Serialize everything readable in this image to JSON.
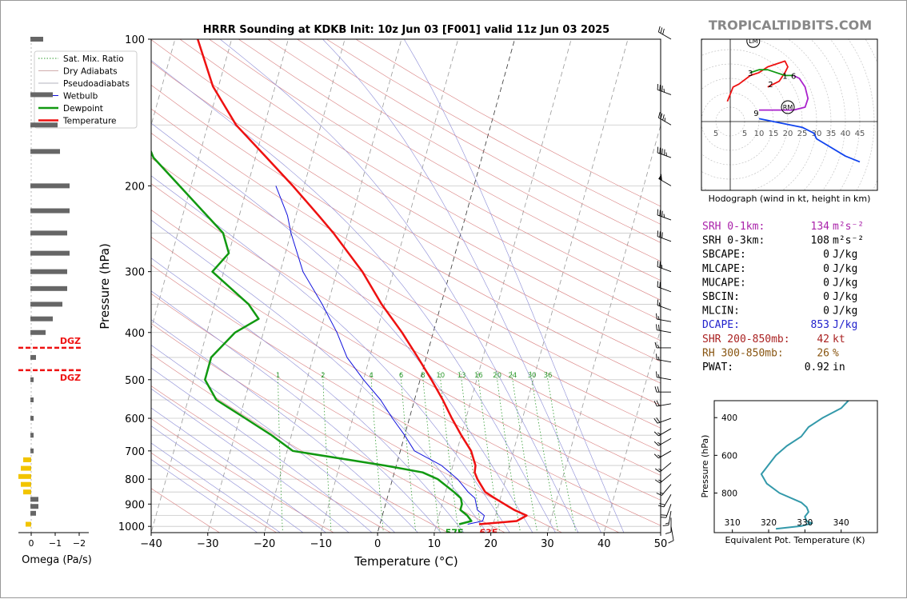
{
  "site": "TROPICALTIDBITS.COM",
  "chart_data": [
    {
      "type": "line",
      "title": "HRRR Sounding at KDKB Init: 10z Jun 03 [F001] valid 11z Jun 03 2025",
      "xlabel": "Temperature (°C)",
      "ylabel": "Pressure (hPa)",
      "xlim": [
        -40,
        50
      ],
      "ylim": [
        1030,
        100
      ],
      "y_scale": "log",
      "skew": "skew-T",
      "x_ticks": [
        "−40",
        "−30",
        "−20",
        "−10",
        "0",
        "10",
        "20",
        "30",
        "40",
        "50"
      ],
      "y_ticks": [
        "100",
        "200",
        "300",
        "400",
        "500",
        "600",
        "700",
        "800",
        "900",
        "1000"
      ],
      "legend_position": "top-left",
      "legend": [
        "Sat. Mix. Ratio",
        "Dry Adiabats",
        "Pseudoadiabats",
        "Wetbulb",
        "Dewpoint",
        "Temperature"
      ],
      "mixing_ratio_labels": [
        "1",
        "2",
        "4",
        "6",
        "8",
        "10",
        "13",
        "16",
        "20",
        "24",
        "30",
        "36"
      ],
      "surface_labels": {
        "dewpoint": "57F",
        "temperature": "63F"
      },
      "series": [
        {
          "name": "Temperature",
          "color": "#ee1111",
          "p": [
            990,
            975,
            950,
            925,
            900,
            875,
            850,
            800,
            775,
            750,
            700,
            650,
            600,
            550,
            500,
            450,
            400,
            350,
            300,
            250,
            230,
            200,
            175,
            150,
            125,
            100
          ],
          "t": [
            17.5,
            24.0,
            25.5,
            23.0,
            21.0,
            19.0,
            17.0,
            15.0,
            14.2,
            14.0,
            12.5,
            10.0,
            7.5,
            5.0,
            2.0,
            -1.5,
            -5.5,
            -10.5,
            -15.5,
            -22.5,
            -26.0,
            -32.0,
            -38.0,
            -45.0,
            -51.0,
            -56.0
          ]
        },
        {
          "name": "Dewpoint",
          "color": "#119911",
          "p": [
            990,
            975,
            950,
            925,
            900,
            875,
            850,
            800,
            775,
            750,
            700,
            650,
            600,
            550,
            500,
            450,
            400,
            375,
            350,
            300,
            275,
            250,
            200,
            175,
            150,
            100
          ],
          "t": [
            14.0,
            16.0,
            15.0,
            13.5,
            13.5,
            13.0,
            11.5,
            8.0,
            5.0,
            -2.0,
            -19.0,
            -23.5,
            -29.0,
            -35.0,
            -38.0,
            -38.0,
            -35.0,
            -31.5,
            -34.0,
            -42.0,
            -40.0,
            -42.0,
            -52.0,
            -58.0,
            -62.0,
            -73.0
          ]
        },
        {
          "name": "Wetbulb",
          "color": "#1111dd",
          "p": [
            990,
            975,
            950,
            925,
            900,
            875,
            850,
            800,
            750,
            700,
            650,
            600,
            550,
            500,
            450,
            400,
            350,
            300,
            250,
            230,
            200
          ],
          "t": [
            15.5,
            18.0,
            18.0,
            16.5,
            16.0,
            15.5,
            14.0,
            11.5,
            8.0,
            2.5,
            0.0,
            -3.0,
            -6.0,
            -10.0,
            -14.0,
            -17.0,
            -21.0,
            -26.0,
            -30.0,
            -31.5,
            -35.0
          ]
        }
      ]
    },
    {
      "type": "line",
      "title": "",
      "xlabel": "Hodograph (wind in kt, height in km)",
      "ring_labels": [
        "5",
        "5",
        "10",
        "15",
        "20",
        "25",
        "30",
        "35",
        "40",
        "45"
      ],
      "markers": [
        "LM",
        "RM"
      ],
      "height_labels": [
        {
          "text": "3",
          "u": 7,
          "v": 17
        },
        {
          "text": "1",
          "u": 19,
          "v": 16
        },
        {
          "text": "6",
          "u": 22,
          "v": 16
        },
        {
          "text": "2",
          "u": 14,
          "v": 13
        },
        {
          "text": "9",
          "u": 9,
          "v": 3
        }
      ],
      "segments": [
        {
          "name": "0-3km",
          "color": "#ee1111",
          "u": [
            -1,
            1,
            3,
            7,
            10,
            13,
            16,
            19,
            20,
            19,
            17,
            15,
            13
          ],
          "v": [
            7,
            12,
            13,
            16,
            17,
            19,
            20,
            21,
            19,
            17,
            14,
            13,
            12
          ]
        },
        {
          "name": "3-6km",
          "color": "#119911",
          "u": [
            7,
            10,
            13,
            16,
            19,
            22
          ],
          "v": [
            17,
            18,
            18,
            17,
            16,
            16
          ]
        },
        {
          "name": "6-9km",
          "color": "#aa22cc",
          "u": [
            22,
            24,
            26,
            27,
            26,
            22,
            17,
            12,
            10
          ],
          "v": [
            16,
            15,
            12,
            8,
            5,
            4,
            4,
            4,
            4
          ]
        },
        {
          "name": "9-12km",
          "color": "#1144ee",
          "u": [
            10,
            15,
            20,
            25,
            29,
            30,
            35,
            40,
            45
          ],
          "v": [
            1,
            0,
            -1,
            -2,
            -4,
            -6,
            -9,
            -12,
            -14
          ]
        }
      ],
      "lm": {
        "u": 8,
        "v": 28
      },
      "rm": {
        "u": 20,
        "v": 5
      }
    },
    {
      "type": "line",
      "title": "",
      "xlabel": "Equivalent Pot. Temperature (K)",
      "ylabel": "Pressure (hPa)",
      "xlim": [
        305,
        350
      ],
      "ylim": [
        1010,
        310
      ],
      "x_ticks": [
        "310",
        "320",
        "330",
        "340"
      ],
      "y_ticks": [
        "400",
        "600",
        "800"
      ],
      "series": [
        {
          "name": "θe",
          "color": "#3399aa",
          "p": [
            990,
            975,
            960,
            950,
            925,
            900,
            875,
            850,
            800,
            750,
            700,
            675,
            650,
            600,
            550,
            500,
            450,
            400,
            350,
            310
          ],
          "x": [
            322,
            329,
            332,
            330.5,
            330,
            331,
            330.5,
            329,
            323,
            319.5,
            318,
            319,
            320,
            322,
            325,
            329,
            331,
            335,
            340,
            342
          ]
        }
      ]
    },
    {
      "type": "bar",
      "title": "",
      "xlabel": "Omega (Pa/s)",
      "xlim": [
        1.2,
        -2.7
      ],
      "x_ticks": [
        "0",
        "−1",
        "−2"
      ],
      "annotation": "DGZ",
      "dgz_p": [
        430,
        478
      ],
      "bars": {
        "p": [
          100,
          130,
          150,
          170,
          200,
          225,
          250,
          275,
          300,
          325,
          350,
          375,
          400,
          450,
          500,
          550,
          600,
          650,
          700,
          730,
          760,
          790,
          820,
          850,
          880,
          910,
          940,
          990
        ],
        "omega": [
          -0.5,
          -0.9,
          -1.1,
          -1.2,
          -1.6,
          -1.6,
          -1.5,
          -1.6,
          -1.5,
          -1.5,
          -1.3,
          -0.9,
          -0.6,
          -0.2,
          -0.1,
          -0.1,
          -0.1,
          -0.1,
          -0.1,
          0.3,
          0.4,
          0.5,
          0.4,
          0.3,
          -0.3,
          -0.3,
          -0.2,
          0.2
        ],
        "colors": [
          "#666666",
          "#666666",
          "#666666",
          "#666666",
          "#666666",
          "#666666",
          "#666666",
          "#666666",
          "#666666",
          "#666666",
          "#666666",
          "#666666",
          "#666666",
          "#666666",
          "#666666",
          "#666666",
          "#666666",
          "#666666",
          "#666666",
          "#f2c400",
          "#f2c400",
          "#f2c400",
          "#f2c400",
          "#f2c400",
          "#666666",
          "#666666",
          "#666666",
          "#f2c400"
        ]
      }
    }
  ],
  "indices": [
    {
      "label": "SRH 0-1km:",
      "value": "134",
      "unit": "m²s⁻²",
      "color": "#aa22aa"
    },
    {
      "label": "SRH 0-3km:",
      "value": "108",
      "unit": "m²s⁻²",
      "color": "#000000"
    },
    {
      "label": "SBCAPE:",
      "value": "0",
      "unit": "J/kg",
      "color": "#000000"
    },
    {
      "label": "MLCAPE:",
      "value": "0",
      "unit": "J/kg",
      "color": "#000000"
    },
    {
      "label": "MUCAPE:",
      "value": "0",
      "unit": "J/kg",
      "color": "#000000"
    },
    {
      "label": "SBCIN:",
      "value": "0",
      "unit": "J/kg",
      "color": "#000000"
    },
    {
      "label": "MLCIN:",
      "value": "0",
      "unit": "J/kg",
      "color": "#000000"
    },
    {
      "label": "DCAPE:",
      "value": "853",
      "unit": "J/kg",
      "color": "#2222cc"
    },
    {
      "label": "SHR 200-850mb:",
      "value": "42",
      "unit": "kt",
      "color": "#aa2222"
    },
    {
      "label": "RH 300-850mb:",
      "value": "26",
      "unit": "%",
      "color": "#885511"
    },
    {
      "label": "PWAT:",
      "value": "0.92",
      "unit": "in",
      "color": "#000000"
    }
  ],
  "wind_barbs": {
    "p": [
      100,
      130,
      150,
      175,
      200,
      235,
      260,
      300,
      330,
      360,
      380,
      400,
      430,
      460,
      500,
      530,
      560,
      600,
      630,
      660,
      700,
      740,
      780,
      820,
      860,
      900,
      930,
      960,
      1000
    ],
    "dir": [
      300,
      290,
      300,
      290,
      300,
      290,
      290,
      290,
      290,
      290,
      280,
      280,
      270,
      280,
      280,
      270,
      260,
      250,
      240,
      240,
      240,
      230,
      230,
      220,
      210,
      200,
      190,
      180,
      170
    ],
    "spd": [
      30,
      35,
      35,
      45,
      50,
      35,
      30,
      25,
      20,
      15,
      15,
      20,
      15,
      15,
      15,
      20,
      20,
      20,
      15,
      15,
      15,
      15,
      15,
      15,
      20,
      20,
      15,
      10,
      10
    ]
  }
}
